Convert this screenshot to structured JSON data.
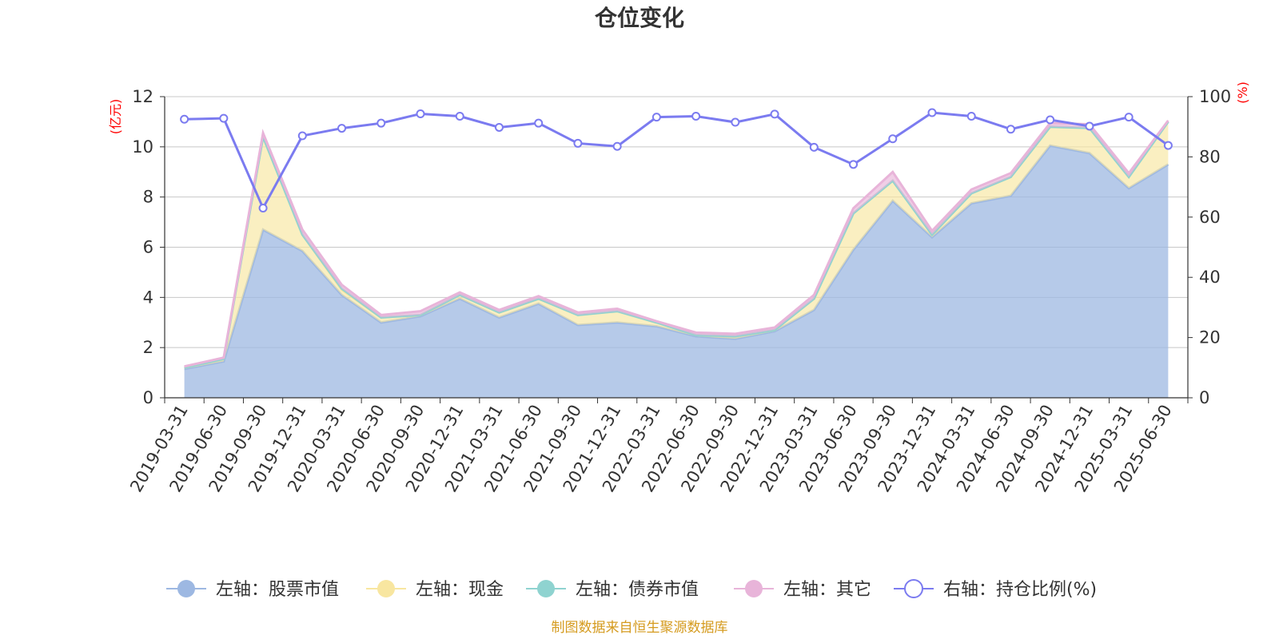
{
  "chart_data": {
    "type": "area",
    "title": "仓位变化",
    "left_axis_unit": "(亿元)",
    "right_axis_unit": "(%)",
    "ylim_left": [
      0,
      12
    ],
    "ylim_right": [
      0,
      100
    ],
    "left_ticks": [
      "0",
      "2",
      "4",
      "6",
      "8",
      "10",
      "12"
    ],
    "right_ticks": [
      "0",
      "20",
      "40",
      "60",
      "80",
      "100"
    ],
    "grid": true,
    "legend_position": "bottom",
    "x": [
      "2019-03-31",
      "2019-06-30",
      "2019-09-30",
      "2019-12-31",
      "2020-03-31",
      "2020-06-30",
      "2020-09-30",
      "2020-12-31",
      "2021-03-31",
      "2021-06-30",
      "2021-09-30",
      "2021-12-31",
      "2022-03-31",
      "2022-06-30",
      "2022-09-30",
      "2022-12-31",
      "2023-03-31",
      "2023-06-30",
      "2023-09-30",
      "2023-12-31",
      "2024-03-31",
      "2024-06-30",
      "2024-09-30",
      "2024-12-31",
      "2025-03-31",
      "2025-06-30"
    ],
    "series": [
      {
        "name": "左轴：股票市值",
        "axis": "left",
        "color": "#9db8e2",
        "values": [
          1.15,
          1.45,
          6.7,
          5.85,
          4.1,
          3.0,
          3.25,
          3.95,
          3.2,
          3.75,
          2.9,
          3.0,
          2.85,
          2.45,
          2.35,
          2.65,
          3.5,
          5.9,
          7.85,
          6.4,
          7.75,
          8.05,
          10.05,
          9.75,
          8.35,
          9.3
        ]
      },
      {
        "name": "左轴：现金",
        "axis": "left",
        "color": "#f8e6a0",
        "values": [
          0.05,
          0.1,
          3.7,
          0.65,
          0.2,
          0.2,
          0.05,
          0.15,
          0.2,
          0.2,
          0.4,
          0.45,
          0.15,
          0.05,
          0.1,
          0.05,
          0.45,
          1.45,
          0.8,
          0.1,
          0.4,
          0.75,
          0.75,
          1.0,
          0.45,
          1.7
        ]
      },
      {
        "name": "左轴：债券市值",
        "axis": "left",
        "color": "#8fd3d0",
        "values": [
          0,
          0,
          0,
          0,
          0.05,
          0,
          0,
          0,
          0,
          0,
          0,
          0,
          0,
          0,
          0,
          0,
          0,
          0,
          0,
          0,
          0,
          0,
          0,
          0,
          0,
          0
        ]
      },
      {
        "name": "左轴：其它",
        "axis": "left",
        "color": "#e8b4d9",
        "values": [
          0.05,
          0.05,
          0.15,
          0.2,
          0.15,
          0.1,
          0.15,
          0.1,
          0.1,
          0.1,
          0.1,
          0.1,
          0.05,
          0.1,
          0.1,
          0.1,
          0.15,
          0.2,
          0.35,
          0.15,
          0.15,
          0.15,
          0.15,
          0.15,
          0.15,
          0.05
        ]
      },
      {
        "name": "右轴：持仓比例(%)",
        "axis": "right",
        "color": "#7b7bf0",
        "values": [
          92.5,
          92.8,
          63.0,
          87.0,
          89.5,
          91.2,
          94.3,
          93.5,
          89.8,
          91.2,
          84.5,
          83.5,
          93.2,
          93.5,
          91.5,
          94.2,
          83.2,
          77.5,
          86.0,
          94.7,
          93.5,
          89.2,
          92.3,
          90.2,
          93.2,
          83.8
        ]
      }
    ],
    "source": "制图数据来自恒生聚源数据库"
  }
}
